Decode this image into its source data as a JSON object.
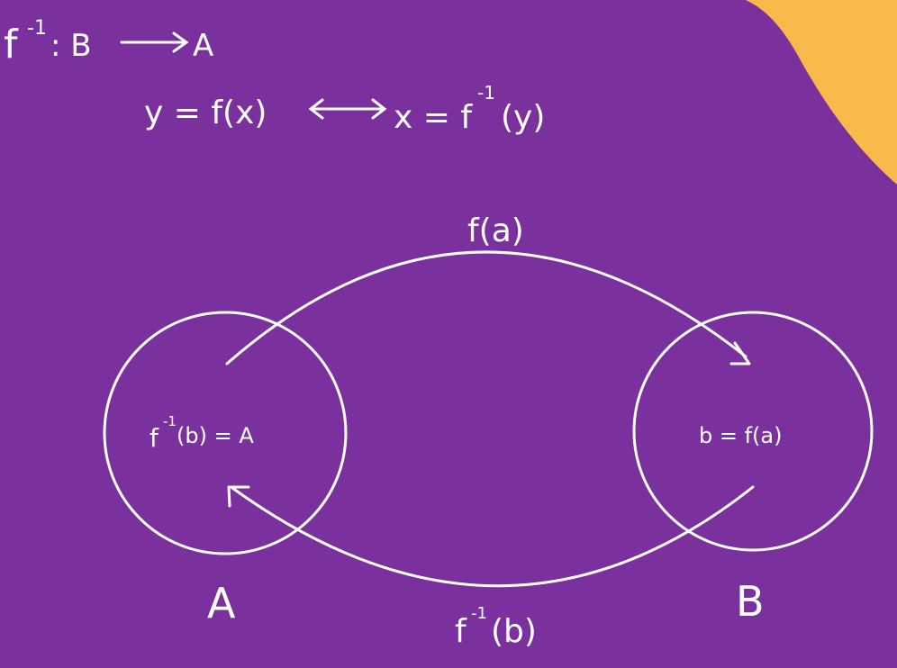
{
  "colors": {
    "background": "#7a319e",
    "accent_blob": "#f6b94a",
    "stroke": "#ffffff"
  },
  "header": {
    "line1": {
      "f": "f",
      "sup": "-1",
      "rest": ": B",
      "target": "A"
    },
    "line2": {
      "left": "y = f(x)",
      "middle": "x = f",
      "sup": "-1",
      "end": "(y)"
    }
  },
  "diagram": {
    "set_a": {
      "letter": "A",
      "content_f": "f",
      "content_sup": "-1",
      "content_rest": "(b) = A"
    },
    "set_b": {
      "letter": "B",
      "content": "b = f(a)"
    },
    "top_arrow_label": "f(a)",
    "bottom_arrow_label": {
      "f": "f",
      "sup": "-1",
      "rest": "(b)"
    }
  }
}
